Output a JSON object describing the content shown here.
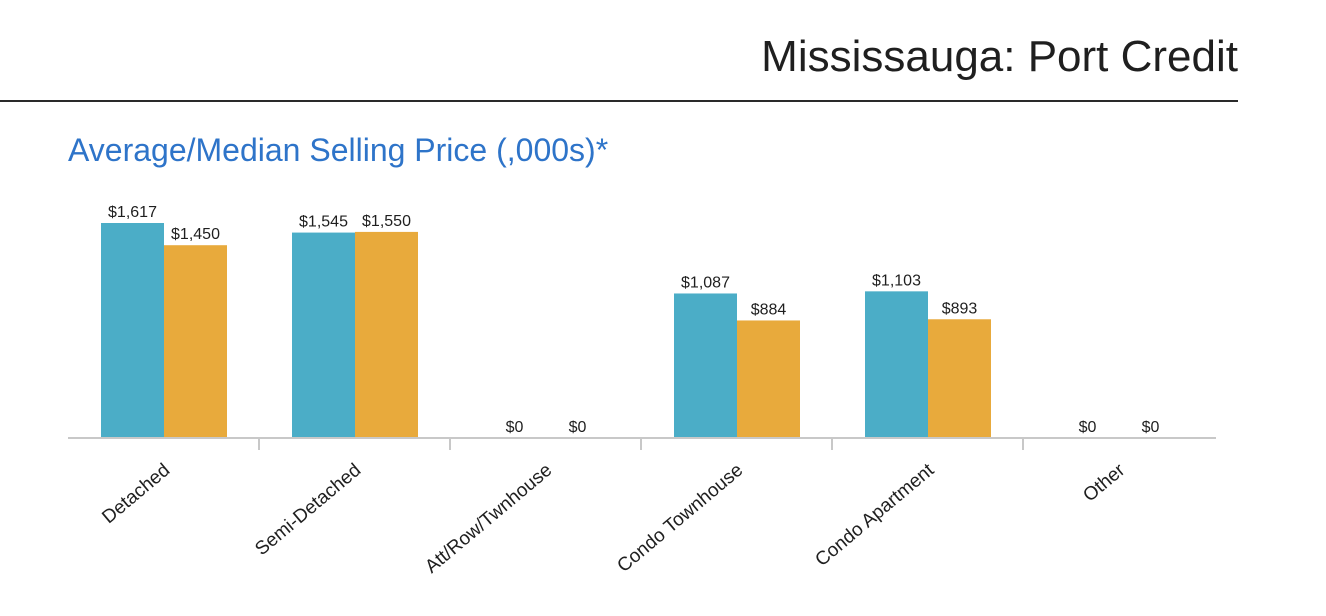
{
  "header": {
    "title": "Mississauga: Port Credit"
  },
  "colors": {
    "chart_title": "#2e74c9",
    "average": "#4badc7",
    "median": "#e8aa3c",
    "axis": "#c8c8c8",
    "text": "#1f1f1f"
  },
  "chart_data": {
    "type": "bar",
    "title": "Average/Median Selling Price (,000s)*",
    "xlabel": "",
    "ylabel": "",
    "grid": false,
    "legend": "none",
    "categories": [
      "Detached",
      "Semi-Detached",
      "Att/Row/Twnhouse",
      "Condo Townhouse",
      "Condo Apartment",
      "Other"
    ],
    "ylim": [
      0,
      1650
    ],
    "series": [
      {
        "values": [
          1617,
          1545,
          0,
          1087,
          1103,
          0
        ],
        "labels": [
          "$1,617",
          "$1,545",
          "$0",
          "$1,087",
          "$1,103",
          "$0"
        ]
      },
      {
        "values": [
          1450,
          1550,
          0,
          884,
          893,
          0
        ],
        "labels": [
          "$1,450",
          "$1,550",
          "$0",
          "$884",
          "$893",
          "$0"
        ]
      }
    ]
  }
}
